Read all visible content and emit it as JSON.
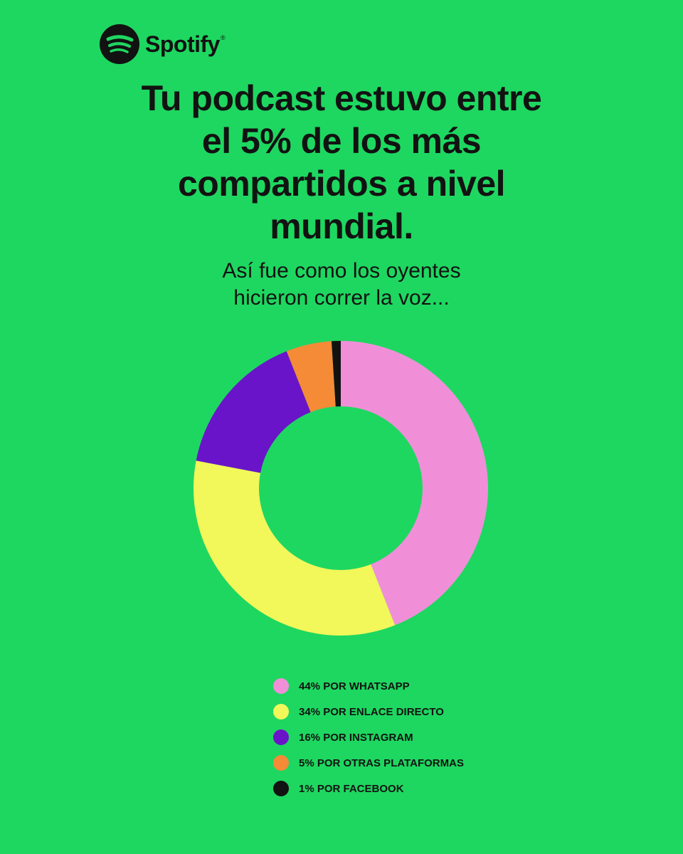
{
  "brand": {
    "name": "Spotify",
    "mark": "®",
    "icon": "spotify-logo-icon"
  },
  "headline": {
    "lines": [
      "Tu podcast estuvo entre",
      "el 5% de los más",
      "compartidos a nivel",
      "mundial."
    ]
  },
  "subheadline": {
    "lines": [
      "Así fue como los oyentes",
      "hicieron correr la voz..."
    ]
  },
  "colors": {
    "background": "#1ed760",
    "text": "#121212"
  },
  "chart_data": {
    "type": "pie",
    "variant": "donut",
    "unit": "%",
    "title": "",
    "legend_position": "bottom",
    "series": [
      {
        "name": "44% POR WHATSAPP",
        "value": 44,
        "color": "#f08fd8"
      },
      {
        "name": "34% POR ENLACE DIRECTO",
        "value": 34,
        "color": "#f2f75a"
      },
      {
        "name": "16% POR INSTAGRAM",
        "value": 16,
        "color": "#6a14c9"
      },
      {
        "name": "5% POR OTRAS PLATAFORMAS",
        "value": 5,
        "color": "#f58a37"
      },
      {
        "name": "1% POR FACEBOOK",
        "value": 1,
        "color": "#121212"
      }
    ]
  }
}
